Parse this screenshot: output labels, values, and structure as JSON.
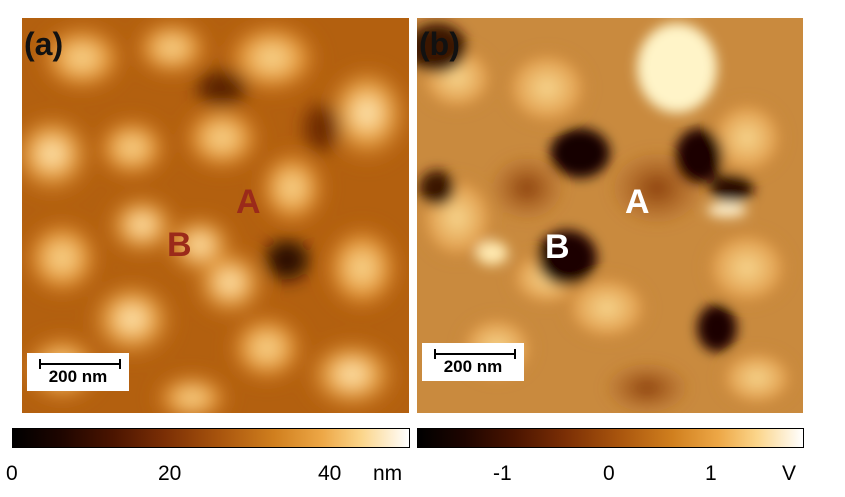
{
  "panel_a": {
    "label": "(a)",
    "grain_label_a": "A",
    "grain_label_b": "B",
    "grain_label_color": "#9b2a1a",
    "scale_bar": "200 nm",
    "colorbar_ticks": [
      "0",
      "20",
      "40"
    ],
    "colorbar_unit": "nm"
  },
  "panel_b": {
    "label": "(b)",
    "grain_label_a": "A",
    "grain_label_b": "B",
    "grain_label_color": "#ffffff",
    "scale_bar": "200 nm",
    "colorbar_ticks": [
      "-1",
      "0",
      "1"
    ],
    "colorbar_unit": "V"
  }
}
